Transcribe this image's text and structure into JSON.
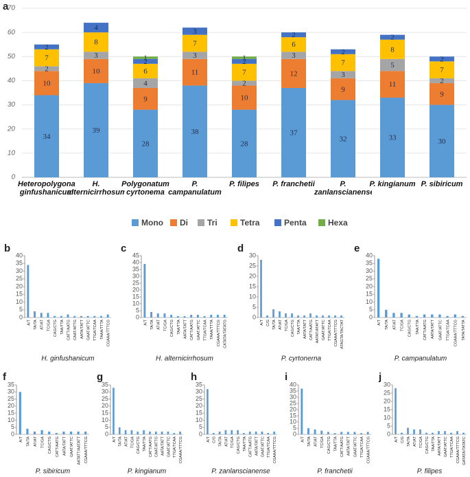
{
  "chart_data": [
    {
      "panel_label": "a",
      "type": "stacked_bar",
      "categories": [
        "Heteropolygonatum ginfushanicum",
        "H. alternicirrhosum",
        "Polygonatum cyrtonema",
        "P. campanulatum",
        "P. filipes",
        "P. franchetii",
        "P. zanlanscianense",
        "P. kingianum",
        "P. sibiricum"
      ],
      "series": [
        {
          "name": "Mono",
          "color": "#5b9bd5",
          "values": [
            34,
            39,
            28,
            38,
            28,
            37,
            32,
            33,
            30
          ]
        },
        {
          "name": "Di",
          "color": "#ed7d31",
          "values": [
            10,
            10,
            9,
            11,
            10,
            12,
            9,
            11,
            9
          ]
        },
        {
          "name": "Tri",
          "color": "#a5a5a5",
          "values": [
            2,
            3,
            4,
            3,
            2,
            3,
            3,
            5,
            2
          ]
        },
        {
          "name": "Tetra",
          "color": "#ffc000",
          "values": [
            7,
            8,
            6,
            7,
            7,
            6,
            7,
            8,
            7
          ]
        },
        {
          "name": "Penta",
          "color": "#4472c4",
          "values": [
            2,
            4,
            2,
            3,
            2,
            2,
            2,
            2,
            2
          ]
        },
        {
          "name": "Hexa",
          "color": "#70ad47",
          "values": [
            null,
            null,
            1,
            null,
            1,
            null,
            null,
            null,
            null
          ]
        }
      ],
      "ylim": [
        0,
        70
      ],
      "yticks": [
        0,
        10,
        20,
        30,
        40,
        50,
        60,
        70
      ],
      "grid": true,
      "legend": "bottom"
    },
    {
      "panel_label": "b",
      "type": "bar",
      "xlabel": "H. ginfushanicum",
      "color": "#5b9bd5",
      "categories": [
        "A/T",
        "TA/TA",
        "AT/AT",
        "TC/GA",
        "CAG/CTG",
        "TAA/TTA",
        "CATT/AATG",
        "CAAT/ATTG",
        "AATA/TATT",
        "GAAT/ATTC",
        "TTGA/TCAA",
        "TAAA/TTTA",
        "CGAAA/TTTCG"
      ],
      "values": [
        34,
        4,
        3,
        3,
        1,
        1,
        2,
        1,
        1,
        1,
        1,
        1,
        2
      ],
      "ylim": [
        0,
        40
      ],
      "yticks": [
        0,
        5,
        10,
        15,
        20,
        25,
        30,
        35,
        40
      ]
    },
    {
      "panel_label": "c",
      "type": "bar",
      "xlabel": "H. alternicirrhosum",
      "color": "#5b9bd5",
      "categories": [
        "A/T",
        "TA/TA",
        "AT/AT",
        "TC/GA",
        "CAG/CTG",
        "TAA/TTA",
        "AATA/TATT",
        "CATT/AATG",
        "GAAT/ATTC",
        "TTGA/TCAA",
        "TAAA/TTTA",
        "CGAAA/TTTCG",
        "CATATA/TATATG"
      ],
      "values": [
        39,
        4,
        3,
        3,
        2,
        1,
        1,
        2,
        2,
        1,
        2,
        2,
        2
      ],
      "ylim": [
        0,
        45
      ],
      "yticks": [
        0,
        5,
        10,
        15,
        20,
        25,
        30,
        35,
        40,
        45
      ]
    },
    {
      "panel_label": "d",
      "type": "bar",
      "xlabel": "P. cyrtonerna",
      "color": "#5b9bd5",
      "categories": [
        "A/T",
        "C/G",
        "TA/TA",
        "AT/AT",
        "TC/GA",
        "CAG/CTG",
        "TAA/TTA",
        "AATA/TATT",
        "CATT/AATG",
        "AATAT/ATATT",
        "GAAT/ATTC",
        "TTGA/TCAA",
        "CGAAA/TTTCG",
        "ATAGTA/TACTAT"
      ],
      "values": [
        28,
        1,
        4,
        3,
        2,
        2,
        1,
        1,
        2,
        1,
        1,
        1,
        1,
        1
      ],
      "ylim": [
        0,
        30
      ],
      "yticks": [
        0,
        5,
        10,
        15,
        20,
        25,
        30
      ]
    },
    {
      "panel_label": "e",
      "type": "bar",
      "xlabel": "P. campanulatum",
      "color": "#5b9bd5",
      "categories": [
        "A/T",
        "TA/TA",
        "AT/AT",
        "TC/GA",
        "CAG/CTG",
        "TAA/TTA",
        "CATT/AATG",
        "AATA/TATT",
        "GAAT/ATTC",
        "TTGA/TCAA",
        "CGAAA/TTTCG",
        "TATA/TATTA"
      ],
      "values": [
        38,
        5,
        3,
        3,
        2,
        1,
        2,
        2,
        2,
        1,
        2,
        1
      ],
      "ylim": [
        0,
        40
      ],
      "yticks": [
        0,
        5,
        10,
        15,
        20,
        25,
        30,
        35,
        40
      ]
    },
    {
      "panel_label": "f",
      "type": "bar",
      "xlabel": "P. sibiricum",
      "color": "#5b9bd5",
      "categories": [
        "A/T",
        "TA/TA",
        "AT/AT",
        "TC/GA",
        "CAG/CTG",
        "CATT/AATG",
        "AATA/TATT",
        "GAAT/ATTC",
        "AATATT/AATATT",
        "CGAAA/TTTCG"
      ],
      "values": [
        30,
        4,
        2,
        3,
        2,
        1,
        2,
        2,
        2,
        2
      ],
      "ylim": [
        0,
        35
      ],
      "yticks": [
        0,
        5,
        10,
        15,
        20,
        25,
        30,
        35
      ]
    },
    {
      "panel_label": "g",
      "type": "bar",
      "xlabel": "P. kingianum",
      "color": "#5b9bd5",
      "categories": [
        "A/T",
        "TA/TA",
        "AT/AT",
        "TC/GA",
        "CAG/CTG",
        "TAA/TTA",
        "CATT/AATG",
        "CAAT/ATTG",
        "AATA/TATT",
        "GAAT/ATTC",
        "TTGA/TCAA",
        "CGAAA/TTTCG"
      ],
      "values": [
        33,
        5,
        3,
        3,
        2,
        3,
        2,
        2,
        2,
        2,
        1,
        2
      ],
      "ylim": [
        0,
        35
      ],
      "yticks": [
        0,
        5,
        10,
        15,
        20,
        25,
        30,
        35
      ]
    },
    {
      "panel_label": "h",
      "type": "bar",
      "xlabel": "P. zanlanscianense",
      "color": "#5b9bd5",
      "categories": [
        "A/T",
        "C/G",
        "TA/TA",
        "AT/AT",
        "TC/GA",
        "CAG/CTG",
        "TAA/TTA",
        "CATT/AATG",
        "AATA/TATT",
        "GAAT/ATTC",
        "TTGA/TCAA",
        "CGAAA/TTTCG"
      ],
      "values": [
        32,
        1,
        2,
        3,
        3,
        3,
        1,
        2,
        2,
        2,
        1,
        2
      ],
      "ylim": [
        0,
        35
      ],
      "yticks": [
        0,
        5,
        10,
        15,
        20,
        25,
        30,
        35
      ]
    },
    {
      "panel_label": "i",
      "type": "bar",
      "xlabel": "P. franchetii",
      "color": "#5b9bd5",
      "categories": [
        "A/T",
        "TA/TA",
        "AT/AT",
        "TC/GA",
        "CAG/CTG",
        "TAA/TTA",
        "CATT/AATG",
        "AATA/TATT",
        "GAAT/ATTC",
        "TTGA/TCAA",
        "CGAAA/TTTCG"
      ],
      "values": [
        37,
        5,
        4,
        3,
        2,
        1,
        2,
        2,
        2,
        1,
        2
      ],
      "ylim": [
        0,
        40
      ],
      "yticks": [
        0,
        5,
        10,
        15,
        20,
        25,
        30,
        35,
        40
      ]
    },
    {
      "panel_label": "j",
      "type": "bar",
      "xlabel": "P. filipes",
      "color": "#5b9bd5",
      "categories": [
        "A/T",
        "C/G",
        "TA/TA",
        "AT/AT",
        "TC/GA",
        "CAG/CTG",
        "TAA/TTA",
        "AATA/TATT",
        "GAAT/ATTC",
        "TTGA/TCAA",
        "CGAAA/TTTCG",
        "GATATA/TATATC"
      ],
      "values": [
        28,
        1,
        4,
        3,
        3,
        1,
        1,
        2,
        2,
        1,
        2,
        1
      ],
      "ylim": [
        0,
        30
      ],
      "yticks": [
        0,
        5,
        10,
        15,
        20,
        25,
        30
      ]
    }
  ]
}
